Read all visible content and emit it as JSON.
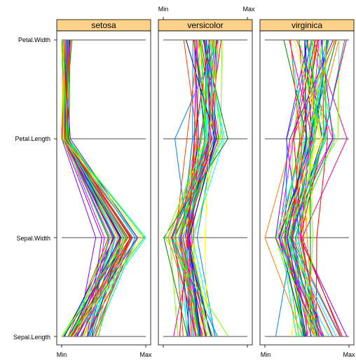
{
  "chart_data": {
    "type": "parallel_coordinates",
    "variables": [
      "Sepal.Length",
      "Sepal.Width",
      "Petal.Length",
      "Petal.Width"
    ],
    "scale_labels": [
      "Min",
      "Max"
    ],
    "panels": [
      {
        "name": "setosa",
        "observations": 50
      },
      {
        "name": "versicolor",
        "observations": 50
      },
      {
        "name": "virginica",
        "observations": 50
      }
    ],
    "strip_color": "#ffd28a",
    "axis_line_color": "#a6a6a6",
    "line_palette": [
      "#ff0000",
      "#ff8000",
      "#ffff00",
      "#80ff00",
      "#00ff00",
      "#00ff80",
      "#00ffff",
      "#0080ff",
      "#0000ff",
      "#8000ff",
      "#ff00ff",
      "#ff0080",
      "#008000",
      "#0080ff",
      "#ff4000"
    ]
  }
}
